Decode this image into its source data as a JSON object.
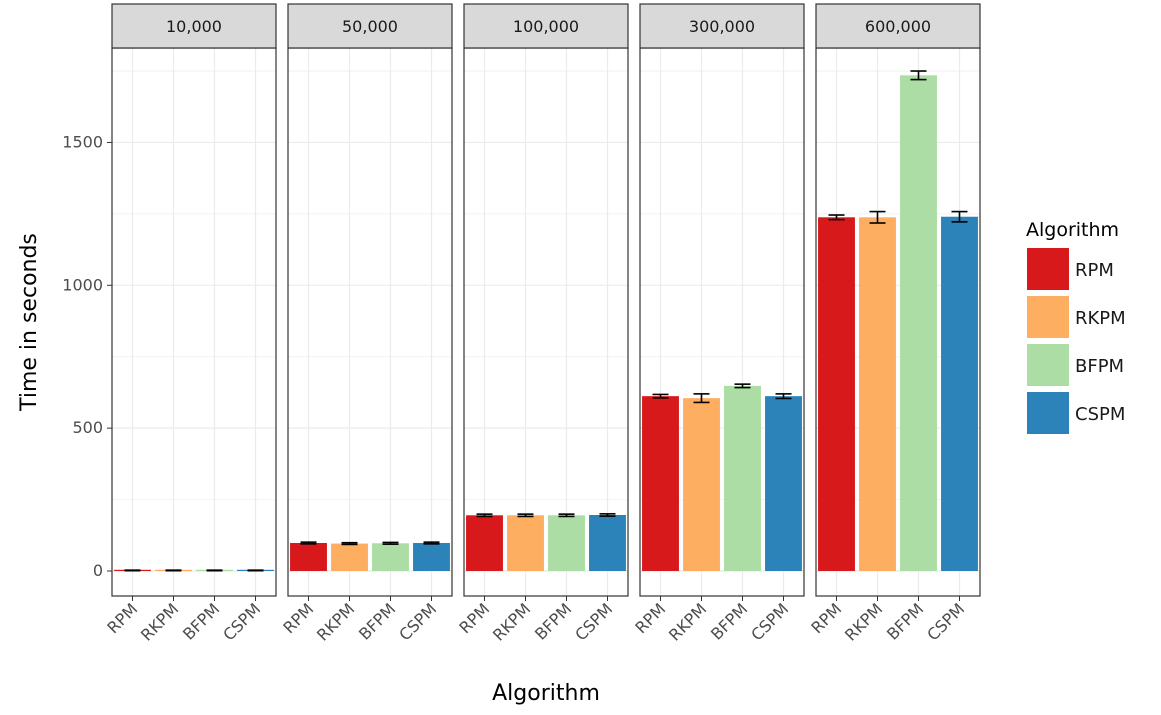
{
  "chart_data": {
    "type": "bar",
    "facet_title": "",
    "facets": [
      "10,000",
      "50,000",
      "100,000",
      "300,000",
      "600,000"
    ],
    "categories": [
      "RPM",
      "RKPM",
      "BFPM",
      "CSPM"
    ],
    "colors": [
      "#d7191c",
      "#fdae61",
      "#abdda4",
      "#2b83ba"
    ],
    "values": [
      [
        2,
        2,
        2,
        2
      ],
      [
        98,
        96,
        97,
        98
      ],
      [
        195,
        195,
        195,
        196
      ],
      [
        612,
        605,
        648,
        612
      ],
      [
        1238,
        1238,
        1735,
        1240
      ]
    ],
    "errors": [
      [
        1,
        1,
        1,
        1
      ],
      [
        3,
        3,
        3,
        3
      ],
      [
        4,
        4,
        4,
        4
      ],
      [
        6,
        15,
        6,
        8
      ],
      [
        8,
        20,
        15,
        18
      ]
    ],
    "xlabel": "Algorithm",
    "ylabel": "Time in seconds",
    "ylim": [
      -90,
      1890
    ],
    "yticks": [
      0,
      500,
      1000,
      1500
    ],
    "legend": {
      "title": "Algorithm",
      "entries": [
        "RPM",
        "RKPM",
        "BFPM",
        "CSPM"
      ],
      "position": "right"
    },
    "grid": true
  }
}
